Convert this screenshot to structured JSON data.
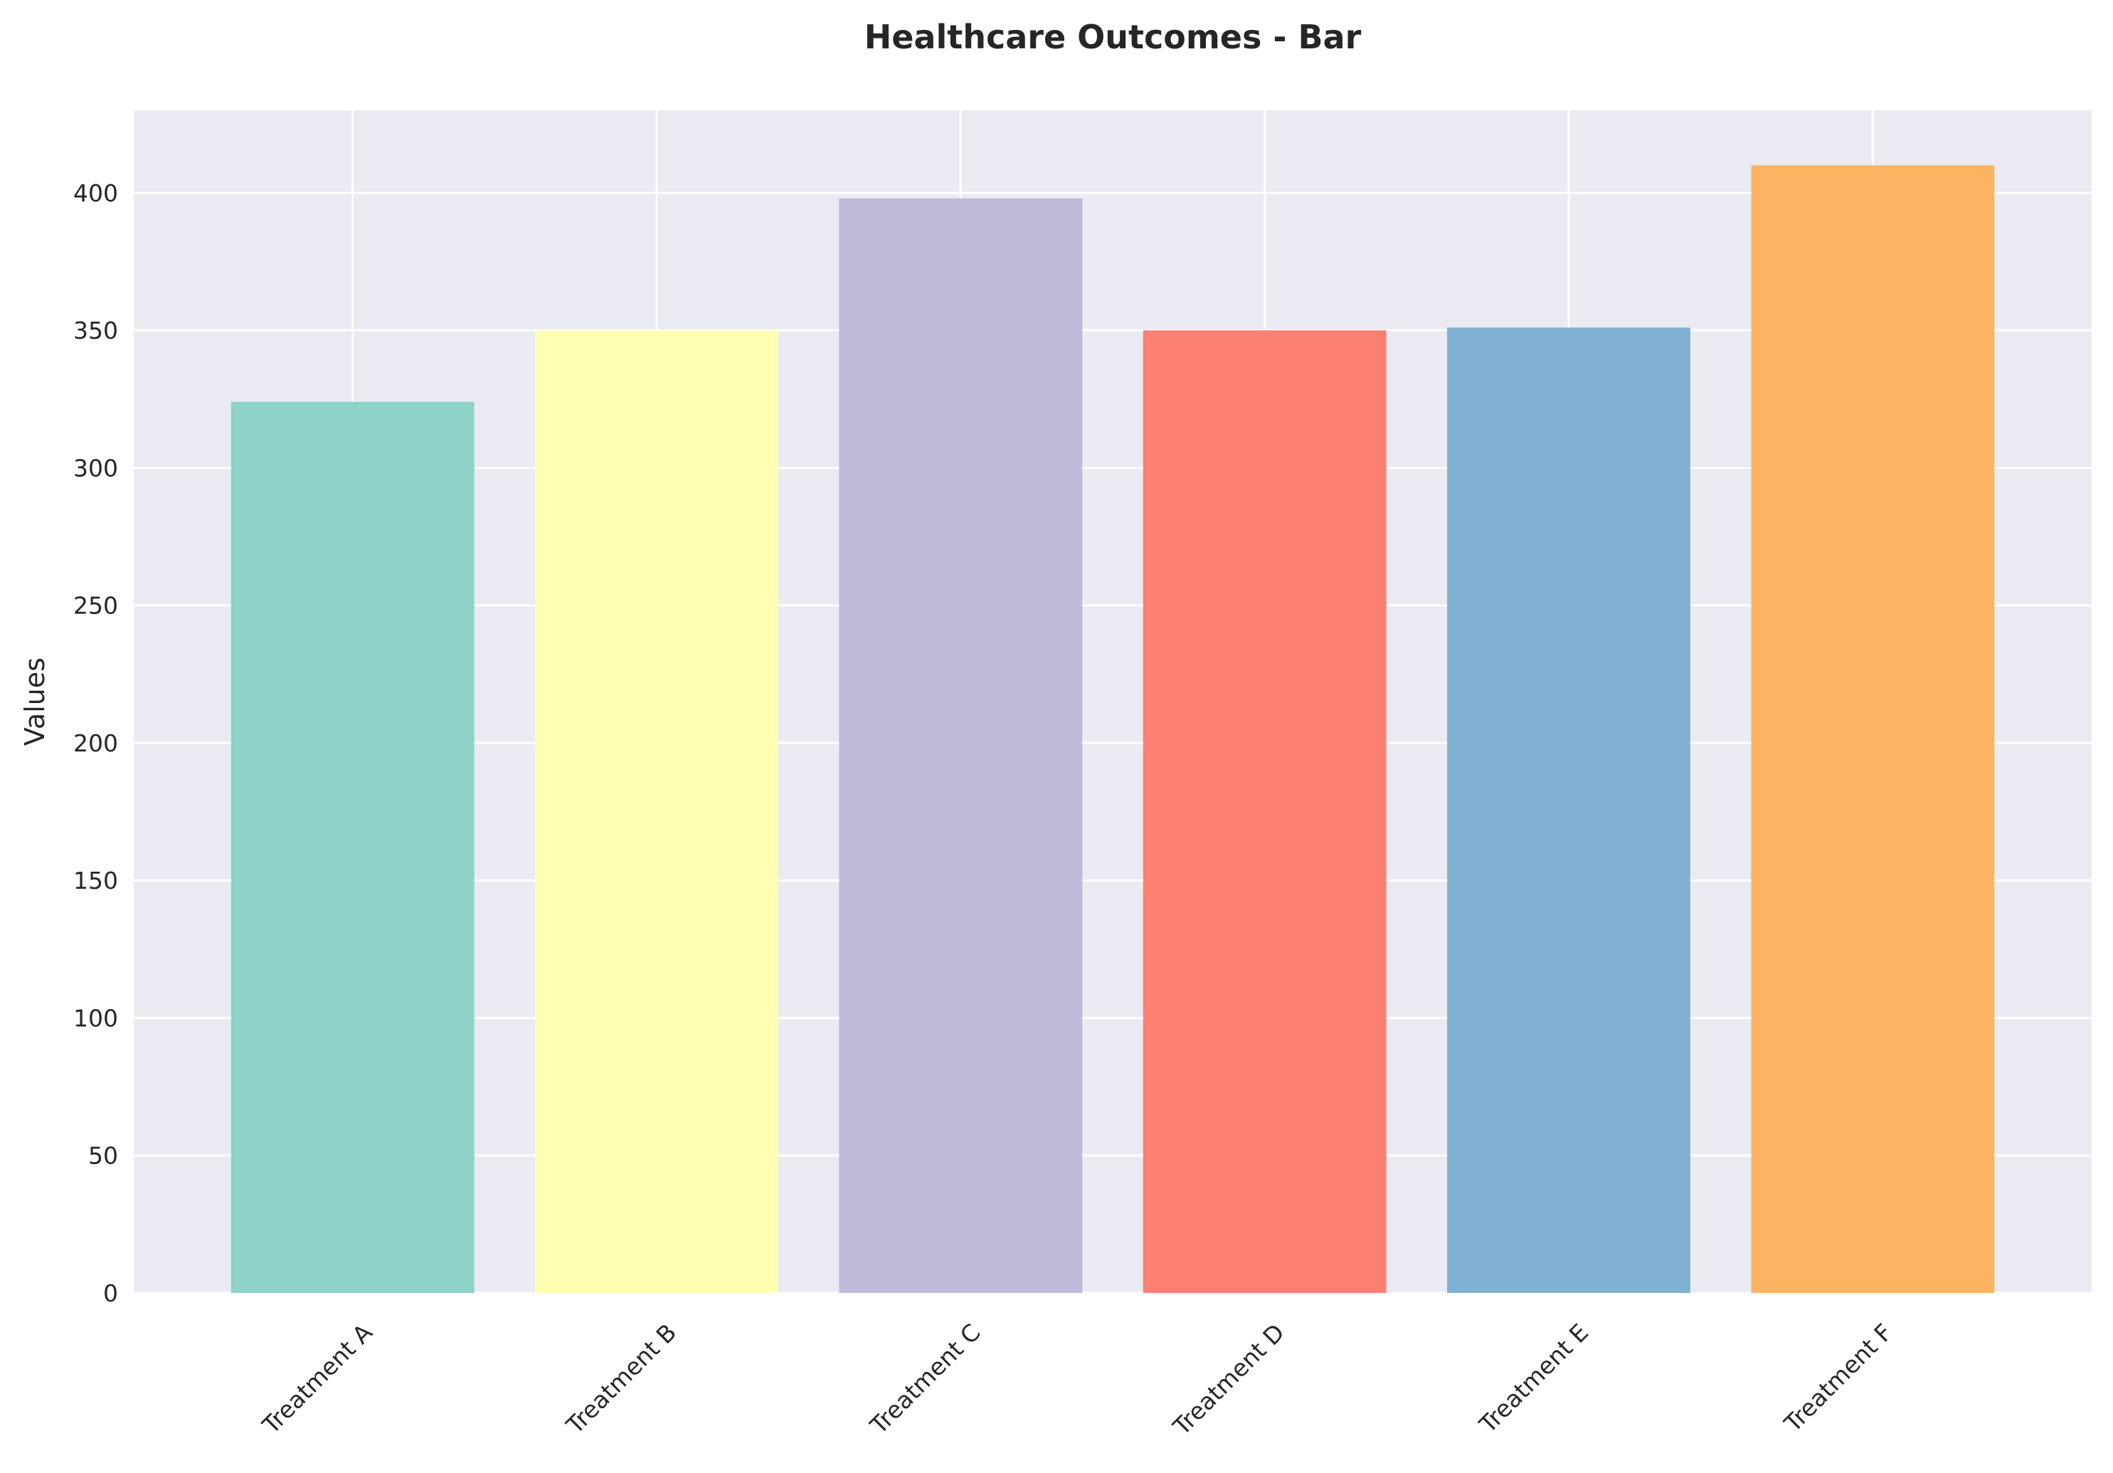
{
  "chart_data": {
    "type": "bar",
    "title": "Healthcare Outcomes - Bar",
    "xlabel": "",
    "ylabel": "Values",
    "categories": [
      "Treatment A",
      "Treatment B",
      "Treatment C",
      "Treatment D",
      "Treatment E",
      "Treatment F"
    ],
    "values": [
      324,
      350,
      398,
      350,
      351,
      410
    ],
    "colors": [
      "#8dd3c7",
      "#ffffb3",
      "#bebada",
      "#fb8072",
      "#80b1d3",
      "#fdb462"
    ],
    "ylim": [
      0,
      430
    ],
    "yticks": [
      0,
      50,
      100,
      150,
      200,
      250,
      300,
      350,
      400
    ],
    "grid": true,
    "background": "#eaeaf2",
    "xtick_rotation": 45
  }
}
